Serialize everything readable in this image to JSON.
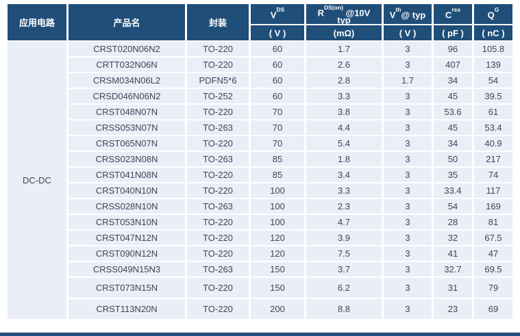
{
  "colors": {
    "header_bg": "#1F4E79",
    "header_text": "#FFFFFF",
    "row_bg": "#EAEEF6",
    "body_text": "#3D4654"
  },
  "table": {
    "application": "DC-DC",
    "header": {
      "application": "应用电路",
      "product": "产品名",
      "package": "封装",
      "vds": {
        "base": "V",
        "sup": "DS",
        "unit": "( V )"
      },
      "rdson": {
        "base": "R",
        "sup": "DS(on)",
        "rest": " @10V",
        "line2": "typ",
        "unit": "(mΩ)"
      },
      "vth": {
        "base": "V",
        "sup": "th",
        "rest": "@ typ",
        "unit": "( V )"
      },
      "crss": {
        "base": "C",
        "sup": "rss",
        "unit": "( pF )"
      },
      "qg": {
        "base": "Q",
        "sup": "G",
        "unit": "( nC )"
      }
    },
    "rows": [
      {
        "product": "CRST020N06N2",
        "package": "TO-220",
        "vds": "60",
        "rdson": "1.7",
        "vth": "3",
        "crss": "96",
        "qg": "105.8"
      },
      {
        "product": "CRTT032N06N",
        "package": "TO-220",
        "vds": "60",
        "rdson": "2.6",
        "vth": "3",
        "crss": "407",
        "qg": "139"
      },
      {
        "product": "CRSM034N06L2",
        "package": "PDFN5*6",
        "vds": "60",
        "rdson": "2.8",
        "vth": "1.7",
        "crss": "34",
        "qg": "54"
      },
      {
        "product": "CRSD046N06N2",
        "package": "TO-252",
        "vds": "60",
        "rdson": "3.3",
        "vth": "3",
        "crss": "45",
        "qg": "39.5"
      },
      {
        "product": "CRST048N07N",
        "package": "TO-220",
        "vds": "70",
        "rdson": "3.8",
        "vth": "3",
        "crss": "53.6",
        "qg": "61"
      },
      {
        "product": "CRSS053N07N",
        "package": "TO-263",
        "vds": "70",
        "rdson": "4.4",
        "vth": "3",
        "crss": "45",
        "qg": "53.4"
      },
      {
        "product": "CRST065N07N",
        "package": "TO-220",
        "vds": "70",
        "rdson": "5.4",
        "vth": "3",
        "crss": "34",
        "qg": "40.9"
      },
      {
        "product": "CRSS023N08N",
        "package": "TO-263",
        "vds": "85",
        "rdson": "1.8",
        "vth": "3",
        "crss": "50",
        "qg": "217"
      },
      {
        "product": "CRST041N08N",
        "package": "TO-220",
        "vds": "85",
        "rdson": "3.4",
        "vth": "3",
        "crss": "35",
        "qg": "74"
      },
      {
        "product": "CRST040N10N",
        "package": "TO-220",
        "vds": "100",
        "rdson": "3.3",
        "vth": "3",
        "crss": "33.4",
        "qg": "117"
      },
      {
        "product": "CRSS028N10N",
        "package": "TO-263",
        "vds": "100",
        "rdson": "2.3",
        "vth": "3",
        "crss": "54",
        "qg": "169"
      },
      {
        "product": "CRST053N10N",
        "package": "TO-220",
        "vds": "100",
        "rdson": "4.7",
        "vth": "3",
        "crss": "28",
        "qg": "81"
      },
      {
        "product": "CRST047N12N",
        "package": "TO-220",
        "vds": "120",
        "rdson": "3.9",
        "vth": "3",
        "crss": "32",
        "qg": "67.5"
      },
      {
        "product": "CRST090N12N",
        "package": "TO-220",
        "vds": "120",
        "rdson": "7.5",
        "vth": "3",
        "crss": "41",
        "qg": "47"
      },
      {
        "product": "CRSS049N15N3",
        "package": "TO-263",
        "vds": "150",
        "rdson": "3.7",
        "vth": "3",
        "crss": "32.7",
        "qg": "69.5"
      },
      {
        "product": "CRST073N15N",
        "package": "TO-220",
        "vds": "150",
        "rdson": "6.2",
        "vth": "3",
        "crss": "31",
        "qg": "79"
      },
      {
        "product": "CRST113N20N",
        "package": "TO-220",
        "vds": "200",
        "rdson": "8.8",
        "vth": "3",
        "crss": "23",
        "qg": "69"
      }
    ]
  }
}
